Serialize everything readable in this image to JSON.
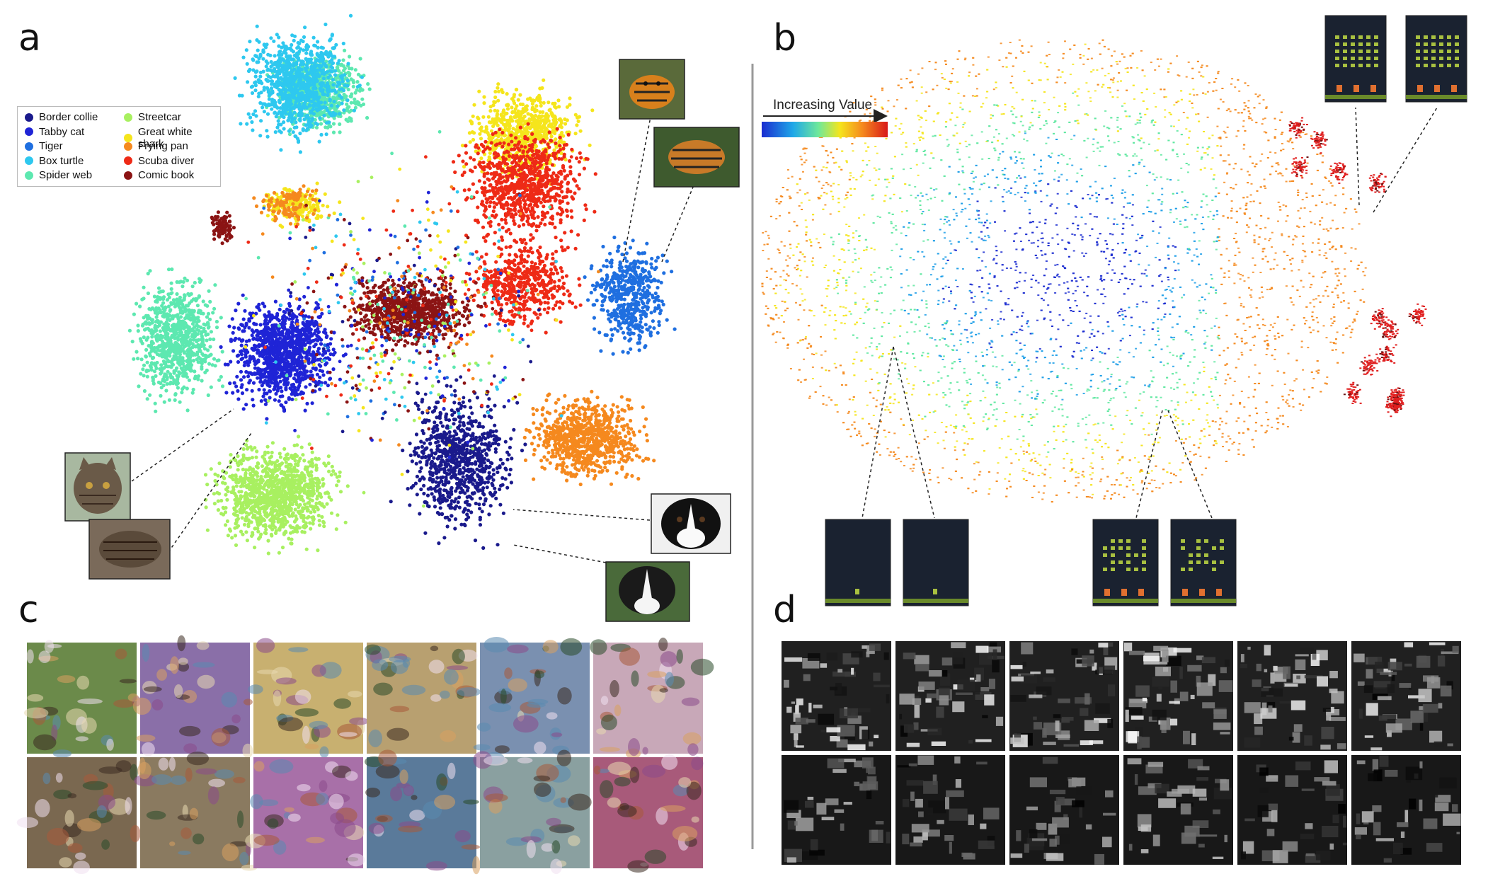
{
  "panels": {
    "a": {
      "letter": "a",
      "legend": [
        {
          "label": "Border collie",
          "color": "#1a1a8c"
        },
        {
          "label": "Tabby cat",
          "color": "#1f24d6"
        },
        {
          "label": "Tiger",
          "color": "#1f6fe0"
        },
        {
          "label": "Box turtle",
          "color": "#2ec8ef"
        },
        {
          "label": "Spider web",
          "color": "#5de8b0"
        },
        {
          "label": "Streetcar",
          "color": "#a8f060"
        },
        {
          "label": "Great white shark",
          "color": "#f5e51c"
        },
        {
          "label": "Frying pan",
          "color": "#f5891e"
        },
        {
          "label": "Scuba diver",
          "color": "#ee2a16"
        },
        {
          "label": "Comic book",
          "color": "#8b1414"
        }
      ]
    },
    "b": {
      "letter": "b",
      "colorbar_label": "Increasing Value",
      "colorbar_colors": [
        "#1a2cd0",
        "#1f9fe8",
        "#5ee8a0",
        "#f5e51c",
        "#f5891e",
        "#e02020"
      ]
    },
    "c": {
      "letter": "c",
      "tile_colors": [
        [
          "#6b8a4a",
          "#8a6fa8",
          "#c8b070",
          "#b8a070",
          "#7a90b0",
          "#c8a8b8"
        ],
        [
          "#7a6850",
          "#8a7a60",
          "#a870a8",
          "#5a7a9a",
          "#8aa0a0",
          "#a85a7a"
        ]
      ]
    },
    "d": {
      "letter": "d"
    }
  }
}
